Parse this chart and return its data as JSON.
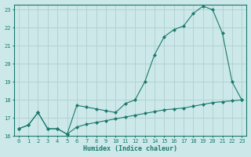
{
  "xlabel": "Humidex (Indice chaleur)",
  "bg_color": "#cce8e8",
  "line_color": "#1a7a6e",
  "grid_color": "#b0d0d0",
  "xlim": [
    -0.5,
    23.5
  ],
  "ylim": [
    16,
    23.3
  ],
  "yticks": [
    16,
    17,
    18,
    19,
    20,
    21,
    22,
    23
  ],
  "xticks": [
    0,
    1,
    2,
    3,
    4,
    5,
    6,
    7,
    8,
    9,
    10,
    11,
    12,
    13,
    14,
    15,
    16,
    17,
    18,
    19,
    20,
    21,
    22,
    23
  ],
  "line1_x": [
    0,
    1,
    2,
    3,
    4,
    5,
    6,
    7,
    8,
    9,
    10,
    11,
    12,
    13,
    14,
    15,
    16,
    17,
    18,
    19,
    20,
    21,
    22,
    23
  ],
  "line1_y": [
    16.4,
    16.6,
    17.3,
    16.4,
    16.4,
    16.1,
    17.7,
    17.6,
    17.5,
    17.4,
    17.3,
    17.8,
    18.0,
    19.0,
    20.5,
    21.5,
    21.9,
    22.1,
    22.8,
    23.2,
    23.0,
    21.7,
    19.0,
    18.0
  ],
  "line2_x": [
    0,
    1,
    2,
    3,
    4,
    5,
    6,
    7,
    8,
    9,
    10,
    11,
    12,
    13,
    14,
    15,
    16,
    17,
    18,
    19,
    20,
    21,
    22,
    23
  ],
  "line2_y": [
    16.4,
    16.6,
    17.3,
    16.4,
    16.4,
    16.1,
    16.5,
    16.65,
    16.75,
    16.85,
    16.95,
    17.05,
    17.15,
    17.25,
    17.35,
    17.45,
    17.5,
    17.55,
    17.65,
    17.75,
    17.85,
    17.9,
    17.95,
    18.0
  ]
}
